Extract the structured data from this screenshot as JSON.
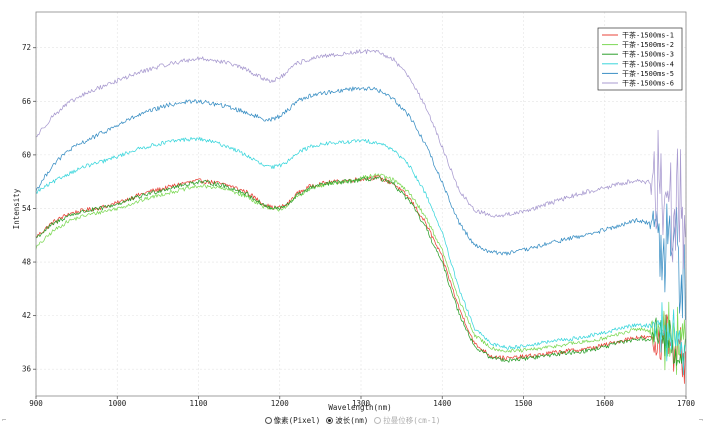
{
  "chart_data": {
    "type": "line",
    "title": "",
    "xlabel": "Wavelength(nm)",
    "ylabel": "Intensity",
    "xlim": [
      900,
      1700
    ],
    "ylim": [
      33,
      76
    ],
    "x_ticks": [
      900,
      1000,
      1100,
      1200,
      1300,
      1400,
      1500,
      1600,
      1700
    ],
    "y_ticks": [
      36,
      42,
      48,
      54,
      60,
      66,
      72
    ],
    "grid": true,
    "legend_position": "top-right",
    "series": [
      {
        "name": "干茶-1500ms-1",
        "color": "#e8433a",
        "noise": 0.25,
        "spike_amp": 3.2,
        "x": [
          900,
          920,
          940,
          960,
          980,
          1000,
          1020,
          1040,
          1060,
          1080,
          1100,
          1120,
          1140,
          1160,
          1180,
          1190,
          1200,
          1210,
          1220,
          1240,
          1260,
          1280,
          1300,
          1320,
          1340,
          1360,
          1380,
          1400,
          1420,
          1440,
          1460,
          1480,
          1500,
          1520,
          1540,
          1560,
          1580,
          1600,
          1620,
          1640,
          1660,
          1670,
          1680,
          1690,
          1700
        ],
        "y": [
          50.8,
          52.4,
          53.4,
          53.8,
          54.1,
          54.6,
          55.3,
          55.9,
          56.3,
          56.8,
          57.1,
          56.9,
          56.5,
          55.8,
          54.5,
          54.1,
          54.1,
          54.5,
          55.6,
          56.6,
          56.9,
          57.1,
          57.3,
          57.5,
          56.8,
          55.1,
          52.3,
          48.5,
          43.0,
          38.8,
          37.5,
          37.2,
          37.4,
          37.6,
          37.9,
          38.1,
          38.3,
          38.7,
          39.2,
          39.6,
          39.5,
          39.3,
          39.0,
          38.4,
          37.6
        ]
      },
      {
        "name": "干茶-1500ms-2",
        "color": "#7ed957",
        "noise": 0.22,
        "spike_amp": 4.5,
        "x": [
          900,
          920,
          940,
          960,
          980,
          1000,
          1020,
          1040,
          1060,
          1080,
          1100,
          1120,
          1140,
          1160,
          1180,
          1190,
          1200,
          1210,
          1220,
          1240,
          1260,
          1280,
          1300,
          1320,
          1340,
          1360,
          1380,
          1400,
          1420,
          1440,
          1460,
          1480,
          1500,
          1520,
          1540,
          1560,
          1580,
          1600,
          1620,
          1640,
          1660,
          1670,
          1680,
          1690,
          1700
        ],
        "y": [
          49.6,
          51.4,
          52.6,
          53.2,
          53.6,
          54.0,
          54.6,
          55.2,
          55.7,
          56.1,
          56.5,
          56.4,
          56.0,
          55.3,
          54.2,
          53.9,
          53.9,
          54.3,
          55.3,
          56.3,
          56.7,
          57.0,
          57.4,
          57.8,
          57.2,
          55.7,
          53.0,
          49.3,
          43.9,
          39.8,
          38.4,
          38.0,
          38.1,
          38.3,
          38.6,
          38.9,
          39.1,
          39.5,
          40.0,
          40.5,
          40.3,
          40.1,
          39.8,
          38.8,
          37.8
        ]
      },
      {
        "name": "干茶-1500ms-3",
        "color": "#2ca02c",
        "noise": 0.25,
        "spike_amp": 4.5,
        "x": [
          900,
          920,
          940,
          960,
          980,
          1000,
          1020,
          1040,
          1060,
          1080,
          1100,
          1120,
          1140,
          1160,
          1180,
          1190,
          1200,
          1210,
          1220,
          1240,
          1260,
          1280,
          1300,
          1320,
          1340,
          1360,
          1380,
          1400,
          1420,
          1440,
          1460,
          1480,
          1500,
          1520,
          1540,
          1560,
          1580,
          1600,
          1620,
          1640,
          1660,
          1670,
          1680,
          1690,
          1700
        ],
        "y": [
          50.7,
          52.2,
          53.2,
          53.7,
          54.0,
          54.5,
          55.1,
          55.7,
          56.2,
          56.6,
          57.0,
          56.8,
          56.3,
          55.6,
          54.4,
          54.0,
          54.0,
          54.4,
          55.4,
          56.4,
          56.8,
          57.0,
          57.2,
          57.4,
          56.7,
          54.8,
          51.8,
          47.9,
          42.4,
          38.5,
          37.3,
          37.0,
          37.2,
          37.4,
          37.7,
          37.9,
          38.1,
          38.5,
          39.0,
          39.4,
          39.3,
          39.0,
          38.6,
          37.8,
          36.5
        ]
      },
      {
        "name": "干茶-1500ms-4",
        "color": "#3ad6dc",
        "noise": 0.22,
        "spike_amp": 3.5,
        "x": [
          900,
          920,
          940,
          960,
          980,
          1000,
          1020,
          1040,
          1060,
          1080,
          1100,
          1120,
          1140,
          1160,
          1180,
          1190,
          1200,
          1210,
          1220,
          1240,
          1260,
          1280,
          1300,
          1320,
          1340,
          1360,
          1380,
          1400,
          1420,
          1440,
          1460,
          1480,
          1500,
          1520,
          1540,
          1560,
          1580,
          1600,
          1620,
          1640,
          1660,
          1670,
          1680,
          1690,
          1700
        ],
        "y": [
          55.8,
          56.9,
          57.9,
          58.7,
          59.2,
          59.8,
          60.5,
          61.0,
          61.4,
          61.7,
          61.8,
          61.4,
          60.8,
          59.9,
          58.8,
          58.6,
          58.8,
          59.3,
          60.2,
          61.0,
          61.3,
          61.4,
          61.6,
          61.4,
          60.6,
          58.7,
          55.6,
          51.3,
          45.1,
          40.5,
          38.9,
          38.4,
          38.6,
          38.9,
          39.2,
          39.4,
          39.7,
          40.1,
          40.6,
          41.0,
          40.8,
          40.6,
          40.2,
          39.0,
          37.8
        ]
      },
      {
        "name": "干茶-1500ms-5",
        "color": "#3a8fc4",
        "noise": 0.25,
        "spike_amp": 7.0,
        "x": [
          900,
          920,
          940,
          960,
          980,
          1000,
          1020,
          1040,
          1060,
          1080,
          1100,
          1120,
          1140,
          1160,
          1180,
          1190,
          1200,
          1210,
          1220,
          1240,
          1260,
          1280,
          1300,
          1320,
          1340,
          1360,
          1380,
          1400,
          1420,
          1440,
          1460,
          1480,
          1500,
          1520,
          1540,
          1560,
          1580,
          1600,
          1620,
          1640,
          1660,
          1670,
          1680,
          1690,
          1700
        ],
        "y": [
          56.0,
          58.8,
          60.5,
          61.5,
          62.4,
          63.3,
          64.2,
          64.9,
          65.5,
          65.9,
          66.0,
          65.7,
          65.3,
          64.7,
          64.0,
          64.0,
          64.3,
          65.0,
          66.0,
          66.7,
          67.0,
          67.3,
          67.5,
          67.3,
          66.3,
          64.3,
          61.1,
          56.9,
          52.5,
          49.9,
          49.1,
          49.0,
          49.3,
          49.8,
          50.3,
          50.7,
          51.1,
          51.6,
          52.1,
          52.7,
          52.3,
          51.8,
          51.0,
          49.2,
          47.5
        ]
      },
      {
        "name": "干茶-1500ms-6",
        "color": "#a99bd0",
        "noise": 0.25,
        "spike_amp": 8.0,
        "x": [
          900,
          920,
          940,
          960,
          980,
          1000,
          1020,
          1040,
          1060,
          1080,
          1100,
          1120,
          1140,
          1160,
          1180,
          1190,
          1200,
          1210,
          1220,
          1240,
          1260,
          1280,
          1300,
          1320,
          1340,
          1360,
          1380,
          1400,
          1420,
          1440,
          1460,
          1480,
          1500,
          1520,
          1540,
          1560,
          1580,
          1600,
          1620,
          1640,
          1660,
          1670,
          1680,
          1690,
          1700
        ],
        "y": [
          62.0,
          64.3,
          65.8,
          66.8,
          67.6,
          68.3,
          69.0,
          69.6,
          70.1,
          70.5,
          70.8,
          70.6,
          70.2,
          69.5,
          68.5,
          68.3,
          68.6,
          69.3,
          70.2,
          70.8,
          71.1,
          71.3,
          71.6,
          71.5,
          70.7,
          68.7,
          65.3,
          60.9,
          56.1,
          53.8,
          53.2,
          53.3,
          53.7,
          54.2,
          54.8,
          55.4,
          55.9,
          56.3,
          56.8,
          57.2,
          56.8,
          56.3,
          55.5,
          53.6,
          52.0
        ]
      }
    ]
  },
  "radio_options": [
    {
      "label": "像素(Pixel)",
      "checked": false,
      "enabled": true
    },
    {
      "label": "波长(nm)",
      "checked": true,
      "enabled": true
    },
    {
      "label": "拉曼位移(cm-1)",
      "checked": false,
      "enabled": false
    }
  ]
}
